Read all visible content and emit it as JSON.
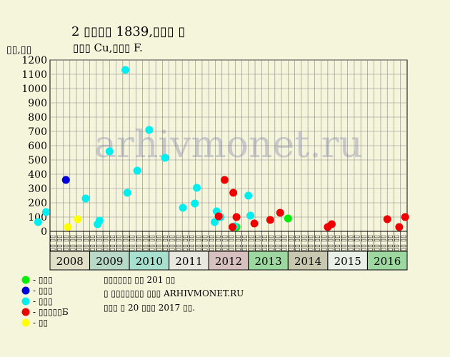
{
  "header": {
    "title": "2 ▯▯▯▯ 1839,▯▯▯ ▯",
    "subtitle": "▯▯▯ Cu,▯▯▯ F."
  },
  "watermark": "arhivmonet.ru",
  "notes": [
    "▯▯▯▯▯▯ ▯▯ 201 ▯▯",
    "▯ ▯▯▯▯▯▯▯ ▯▯▯ ARHIVMONET.RU",
    "▯▯▯ ▯ 20 ▯▯▯ 2017 ▯▯."
  ],
  "legend": [
    {
      "label": "- ▯▯▯",
      "color": "#00ee00"
    },
    {
      "label": "- ▯▯▯",
      "color": "#0000dd"
    },
    {
      "label": "- ▯▯▯",
      "color": "#00eeee"
    },
    {
      "label": "- ▯▯▯▯▯Б",
      "color": "#ee0000"
    },
    {
      "label": "- ▯▯",
      "color": "#ffff00"
    }
  ],
  "chart_data": {
    "type": "scatter",
    "ylabel": "▯▯,▯▯",
    "ylim": [
      0,
      1200
    ],
    "ystep": 100,
    "grid": true,
    "half_year_label_top": "▯▯",
    "half_year_label_bottom": "▯▯",
    "years": [
      {
        "label": "2008",
        "color": "#e0e0c8"
      },
      {
        "label": "2009",
        "color": "#b8d8c8"
      },
      {
        "label": "2010",
        "color": "#a8e0d0"
      },
      {
        "label": "2011",
        "color": "#e8e8e0"
      },
      {
        "label": "2012",
        "color": "#d8c0c0"
      },
      {
        "label": "2013",
        "color": "#9cd8a0"
      },
      {
        "label": "2014",
        "color": "#c8c8b0"
      },
      {
        "label": "2015",
        "color": "#e8f0e8"
      },
      {
        "label": "2016",
        "color": "#9cd8a0"
      }
    ],
    "series": [
      {
        "color": "#00ee00",
        "points": [
          [
            2012.7,
            30
          ],
          [
            2014.0,
            90
          ]
        ]
      },
      {
        "color": "#0000dd",
        "points": [
          [
            2008.4,
            360
          ]
        ]
      },
      {
        "color": "#00eeee",
        "points": [
          [
            2007.7,
            65
          ],
          [
            2007.9,
            135
          ],
          [
            2008.9,
            230
          ],
          [
            2009.2,
            50
          ],
          [
            2009.25,
            75
          ],
          [
            2009.5,
            560
          ],
          [
            2009.9,
            1130
          ],
          [
            2009.95,
            270
          ],
          [
            2010.2,
            425
          ],
          [
            2010.5,
            710
          ],
          [
            2010.9,
            515
          ],
          [
            2011.35,
            165
          ],
          [
            2011.65,
            195
          ],
          [
            2011.7,
            305
          ],
          [
            2012.15,
            65
          ],
          [
            2012.2,
            140
          ],
          [
            2012.3,
            100
          ],
          [
            2012.65,
            35
          ],
          [
            2013.0,
            250
          ],
          [
            2013.05,
            110
          ]
        ]
      },
      {
        "color": "#ee0000",
        "points": [
          [
            2012.25,
            105
          ],
          [
            2012.4,
            360
          ],
          [
            2012.62,
            270
          ],
          [
            2012.6,
            30
          ],
          [
            2012.7,
            100
          ],
          [
            2013.15,
            55
          ],
          [
            2013.55,
            80
          ],
          [
            2013.8,
            130
          ],
          [
            2015.0,
            30
          ],
          [
            2015.1,
            50
          ],
          [
            2016.5,
            85
          ],
          [
            2016.8,
            30
          ],
          [
            2016.95,
            100
          ]
        ]
      },
      {
        "color": "#ffff00",
        "points": [
          [
            2008.45,
            30
          ],
          [
            2008.7,
            85
          ]
        ]
      }
    ]
  }
}
